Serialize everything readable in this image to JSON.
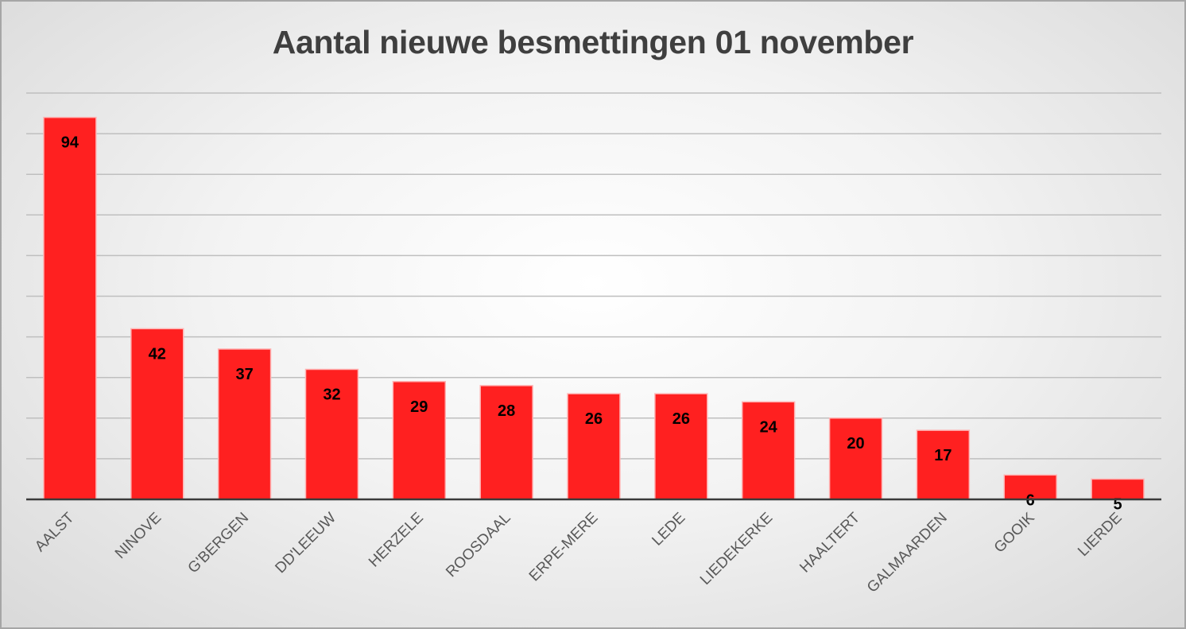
{
  "chart_data": {
    "type": "bar",
    "title": "Aantal nieuwe besmettingen 01 november",
    "categories": [
      "AALST",
      "NINOVE",
      "G'BERGEN",
      "DD'LEEUW",
      "HERZELE",
      "ROOSDAAL",
      "ERPE-MERE",
      "LEDE",
      "LIEDEKERKE",
      "HAALTERT",
      "GALMAARDEN",
      "GOOIK",
      "LIERDE"
    ],
    "values": [
      94,
      42,
      37,
      32,
      29,
      28,
      26,
      26,
      24,
      20,
      17,
      6,
      5
    ],
    "ylim": [
      0,
      100
    ],
    "grid": true,
    "xlabel": "",
    "ylabel": "",
    "legend": "none",
    "bar_color": "#ff2020",
    "gridline_color": "#bfbfbf",
    "axis_color": "#3a3a3a",
    "label_color": "#000000"
  }
}
